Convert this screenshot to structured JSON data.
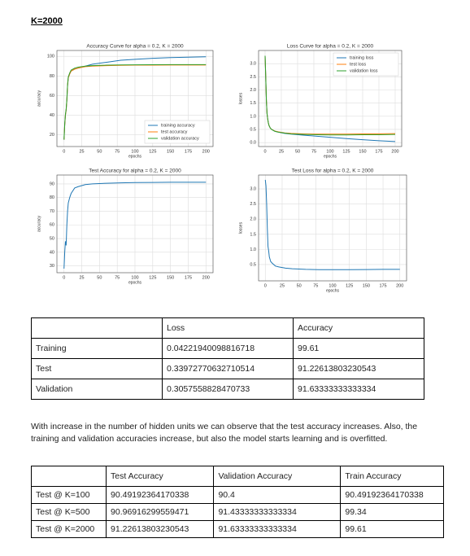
{
  "header": {
    "title": "K=2000"
  },
  "chart_data": [
    {
      "type": "line",
      "title": "Accuracy Curve for alpha = 0.2, K = 2000",
      "xlabel": "epochs",
      "ylabel": "accuracy",
      "x": [
        0,
        1,
        2,
        3,
        4,
        5,
        6,
        8,
        10,
        15,
        20,
        30,
        40,
        60,
        80,
        100,
        125,
        150,
        175,
        200
      ],
      "series": [
        {
          "name": "training accuracy",
          "color": "#1f77b4",
          "values": [
            15,
            30,
            40,
            45,
            55,
            70,
            78,
            82,
            85,
            87,
            88,
            90,
            92,
            94,
            96,
            97,
            98,
            98.7,
            99.2,
            99.6
          ]
        },
        {
          "name": "test accuracy",
          "color": "#ff7f0e",
          "values": [
            15,
            30,
            40,
            45,
            55,
            70,
            78,
            82,
            85,
            87,
            88,
            89.5,
            90,
            90.5,
            90.8,
            91,
            91.1,
            91.2,
            91.2,
            91.2
          ]
        },
        {
          "name": "validation accuracy",
          "color": "#2ca02c",
          "values": [
            15,
            31,
            41,
            46,
            56,
            71,
            79,
            83,
            86,
            88,
            89,
            90,
            90.5,
            91,
            91.3,
            91.4,
            91.5,
            91.6,
            91.6,
            91.6
          ]
        }
      ],
      "xlim": [
        -10,
        210
      ],
      "xticks": [
        0,
        25,
        50,
        75,
        100,
        125,
        150,
        175,
        200
      ],
      "ylim": [
        8,
        106
      ],
      "yticks": [
        20,
        40,
        60,
        80,
        100
      ],
      "grid": true,
      "legend": "lower right"
    },
    {
      "type": "line",
      "title": "Loss Curve for alpha = 0.2, K = 2000",
      "xlabel": "epochs",
      "ylabel": "losses",
      "x": [
        0,
        1,
        2,
        3,
        4,
        5,
        6,
        8,
        10,
        15,
        20,
        30,
        40,
        60,
        80,
        100,
        125,
        150,
        175,
        200
      ],
      "series": [
        {
          "name": "training loss",
          "color": "#1f77b4",
          "values": [
            3.3,
            2.5,
            1.6,
            1.1,
            0.9,
            0.75,
            0.65,
            0.55,
            0.5,
            0.43,
            0.4,
            0.35,
            0.32,
            0.28,
            0.24,
            0.2,
            0.15,
            0.11,
            0.07,
            0.04
          ]
        },
        {
          "name": "test loss",
          "color": "#ff7f0e",
          "values": [
            3.3,
            2.5,
            1.6,
            1.1,
            0.9,
            0.75,
            0.65,
            0.55,
            0.5,
            0.44,
            0.41,
            0.37,
            0.35,
            0.33,
            0.32,
            0.32,
            0.32,
            0.33,
            0.335,
            0.34
          ]
        },
        {
          "name": "validation loss",
          "color": "#2ca02c",
          "values": [
            3.3,
            2.5,
            1.6,
            1.1,
            0.9,
            0.75,
            0.65,
            0.55,
            0.5,
            0.43,
            0.4,
            0.36,
            0.33,
            0.31,
            0.3,
            0.29,
            0.29,
            0.3,
            0.3,
            0.31
          ]
        }
      ],
      "xlim": [
        -10,
        210
      ],
      "xticks": [
        0,
        25,
        50,
        75,
        100,
        125,
        150,
        175,
        200
      ],
      "ylim": [
        -0.15,
        3.5
      ],
      "yticks": [
        {
          "value": 0,
          "label": "0.0"
        },
        0.5,
        {
          "value": 1,
          "label": "1.0"
        },
        1.5,
        {
          "value": 2,
          "label": "2.0"
        },
        2.5,
        {
          "value": 3,
          "label": "3.0"
        }
      ],
      "grid": true,
      "legend": "upper right"
    },
    {
      "type": "line",
      "title": "Test Accuracy for alpha = 0.2, K = 2000",
      "xlabel": "epochs",
      "ylabel": "accuracy",
      "x": [
        0,
        1,
        2,
        3,
        4,
        5,
        6,
        8,
        10,
        15,
        20,
        30,
        40,
        60,
        80,
        100,
        125,
        150,
        175,
        200
      ],
      "series": [
        {
          "color": "#1f77b4",
          "values": [
            28,
            40,
            48,
            45,
            60,
            70,
            76,
            80,
            83,
            87,
            88,
            89.5,
            90,
            90.5,
            90.8,
            91,
            91.1,
            91.2,
            91.2,
            91.2
          ]
        }
      ],
      "xlim": [
        -10,
        210
      ],
      "xticks": [
        0,
        25,
        50,
        75,
        100,
        125,
        150,
        175,
        200
      ],
      "ylim": [
        25,
        96.5
      ],
      "yticks": [
        30,
        40,
        50,
        60,
        70,
        80,
        90
      ],
      "grid": true
    },
    {
      "type": "line",
      "title": "Test Loss for alpha = 0.2, K = 2000",
      "xlabel": "epochs",
      "ylabel": "losses",
      "x": [
        0,
        1,
        2,
        3,
        4,
        5,
        6,
        8,
        10,
        15,
        20,
        30,
        40,
        60,
        80,
        100,
        125,
        150,
        175,
        200
      ],
      "series": [
        {
          "color": "#1f77b4",
          "values": [
            3.3,
            3.1,
            2.5,
            1.7,
            1.1,
            0.95,
            0.75,
            0.6,
            0.55,
            0.45,
            0.42,
            0.38,
            0.36,
            0.34,
            0.33,
            0.33,
            0.33,
            0.335,
            0.34,
            0.34
          ]
        }
      ],
      "xlim": [
        -10,
        210
      ],
      "xticks": [
        0,
        25,
        50,
        75,
        100,
        125,
        150,
        175,
        200
      ],
      "ylim": [
        -0.04,
        3.46
      ],
      "yticks": [
        0.5,
        {
          "value": 1,
          "label": "1.0"
        },
        1.5,
        {
          "value": 2,
          "label": "2.0"
        },
        2.5,
        {
          "value": 3,
          "label": "3.0"
        }
      ],
      "grid": true
    }
  ],
  "table1": {
    "header": [
      "Loss",
      "Accuracy"
    ],
    "rows": [
      [
        "Training",
        "0.04221940098816718",
        "99.61"
      ],
      [
        "Test",
        "0.33972770632710514",
        "91.22613803230543"
      ],
      [
        "Validation",
        "0.3057558828470733",
        "91.63333333333334"
      ]
    ]
  },
  "paragraph": "With increase in the number of hidden units we can observe that the test accuracy increases. Also, the training and validation accuracies increase, but also the model starts learning and is overfitted.",
  "table2": {
    "header": [
      "Test Accuracy",
      "Validation Accuracy",
      "Train Accuracy"
    ],
    "rows": [
      [
        "Test @ K=100",
        "90.49192364170338",
        "90.4",
        "90.49192364170338"
      ],
      [
        "Test @ K=500",
        "90.96916299559471",
        "91.43333333333334",
        "99.34"
      ],
      [
        "Test @ K=2000",
        "91.22613803230543",
        "91.63333333333334",
        "99.61"
      ]
    ]
  }
}
